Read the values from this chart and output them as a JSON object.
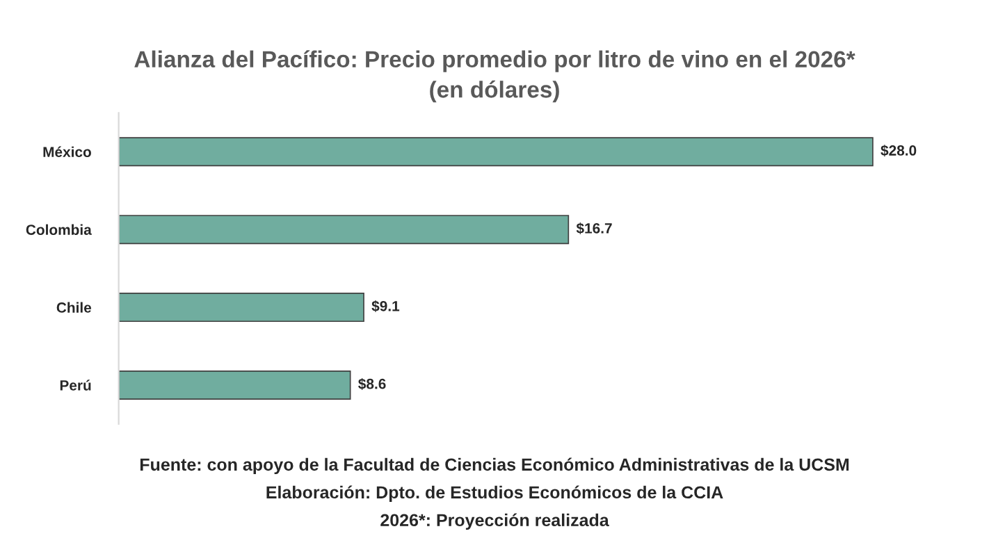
{
  "chart_data": {
    "type": "bar",
    "orientation": "horizontal",
    "title": "Alianza del Pacífico: Precio promedio por litro de vino en el 2026*\n(en dólares)",
    "categories": [
      "México",
      "Colombia",
      "Chile",
      "Perú"
    ],
    "values": [
      28.0,
      16.7,
      9.1,
      8.6
    ],
    "value_labels": [
      "$28.0",
      "$16.7",
      "$9.1",
      "$8.6"
    ],
    "color": "#70ad9f",
    "grid": false,
    "legend": false,
    "annotations": [
      "Fuente: con apoyo de la Facultad de Ciencias Económico Administrativas de la UCSM",
      "Elaboración: Dpto. de Estudios Económicos de la CCIA",
      "2026*: Proyección realizada"
    ]
  }
}
